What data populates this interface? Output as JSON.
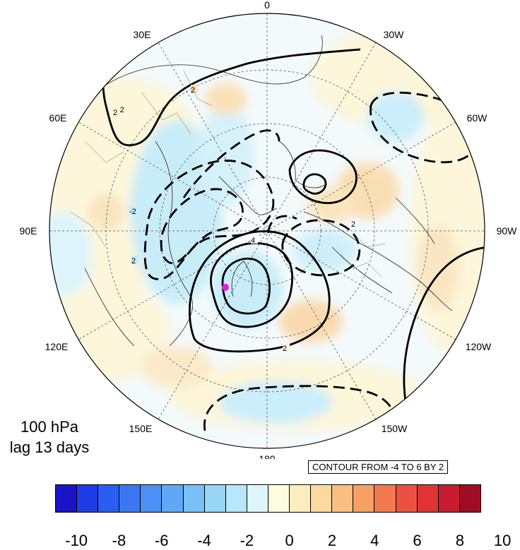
{
  "title": {
    "line1": "100 hPa",
    "line2": "lag 13 days"
  },
  "contour_info": "CONTOUR FROM -4 TO 6 BY 2",
  "longitude_labels": [
    "0",
    "30W",
    "60W",
    "90W",
    "120W",
    "150W",
    "180",
    "150E",
    "120E",
    "90E",
    "60E",
    "30E"
  ],
  "contour_labels": [
    "2",
    "2",
    "2",
    "2",
    "4",
    "-2",
    "-2",
    "2"
  ],
  "colorbar": {
    "colors": [
      "#1a14c8",
      "#1e3ce6",
      "#2a5ef0",
      "#3a78f2",
      "#4b90f4",
      "#5ea8f6",
      "#78c0f6",
      "#98d6f8",
      "#b8e6fa",
      "#dcf6fc",
      "#fdfbe0",
      "#fdedbc",
      "#fcd9a0",
      "#f9bf80",
      "#f6a064",
      "#f27a50",
      "#ec5040",
      "#e03434",
      "#c81c30",
      "#a00c24"
    ],
    "tick_labels": [
      "-10",
      "-8",
      "-6",
      "-4",
      "-2",
      "0",
      "2",
      "4",
      "6",
      "8",
      "10"
    ]
  },
  "marker_color": "#e020e0"
}
